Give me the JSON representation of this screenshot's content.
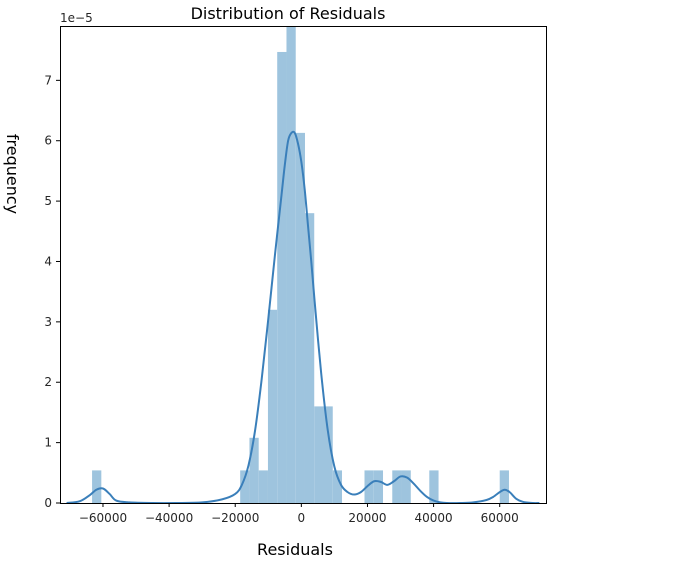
{
  "chart_data": {
    "type": "bar",
    "title": "Distribution of Residuals",
    "xlabel": "Residuals",
    "ylabel": "frequency",
    "y_offset_label": "1e−5",
    "y_scale": 1e-05,
    "xlim": [
      -73000,
      74000
    ],
    "ylim": [
      0,
      7.9
    ],
    "grid": false,
    "legend": "none",
    "x_ticks": [
      {
        "value": -60000,
        "label": "−60000"
      },
      {
        "value": -40000,
        "label": "−40000"
      },
      {
        "value": -20000,
        "label": "−20000"
      },
      {
        "value": 0,
        "label": "0"
      },
      {
        "value": 20000,
        "label": "20000"
      },
      {
        "value": 40000,
        "label": "40000"
      },
      {
        "value": 60000,
        "label": "60000"
      }
    ],
    "y_ticks": [
      {
        "value": 0,
        "label": "0"
      },
      {
        "value": 1,
        "label": "1"
      },
      {
        "value": 2,
        "label": "2"
      },
      {
        "value": 3,
        "label": "3"
      },
      {
        "value": 4,
        "label": "4"
      },
      {
        "value": 5,
        "label": "5"
      },
      {
        "value": 6,
        "label": "6"
      },
      {
        "value": 7,
        "label": "7"
      }
    ],
    "histogram": {
      "bin_width": 2800,
      "bins": [
        {
          "x0": -63300,
          "x1": -60500,
          "value": 0.54
        },
        {
          "x0": -18500,
          "x1": -15700,
          "value": 0.54
        },
        {
          "x0": -15700,
          "x1": -12900,
          "value": 1.08
        },
        {
          "x0": -12900,
          "x1": -10100,
          "value": 0.54
        },
        {
          "x0": -10100,
          "x1": -7300,
          "value": 3.2
        },
        {
          "x0": -7300,
          "x1": -4500,
          "value": 7.47
        },
        {
          "x0": -4500,
          "x1": -1700,
          "value": 9.33
        },
        {
          "x0": -1700,
          "x1": 1100,
          "value": 6.13
        },
        {
          "x0": 1100,
          "x1": 3900,
          "value": 4.8
        },
        {
          "x0": 3900,
          "x1": 6700,
          "value": 1.6
        },
        {
          "x0": 6700,
          "x1": 9500,
          "value": 1.6
        },
        {
          "x0": 9500,
          "x1": 12300,
          "value": 0.54
        },
        {
          "x0": 19100,
          "x1": 21900,
          "value": 0.54
        },
        {
          "x0": 21900,
          "x1": 24700,
          "value": 0.54
        },
        {
          "x0": 27500,
          "x1": 30300,
          "value": 0.54
        },
        {
          "x0": 30300,
          "x1": 33100,
          "value": 0.54
        },
        {
          "x0": 38700,
          "x1": 41500,
          "value": 0.54
        },
        {
          "x0": 60000,
          "x1": 62800,
          "value": 0.54
        }
      ],
      "color": "#9ec4de"
    },
    "kde": {
      "color": "#3a7fba",
      "x": [
        -71000,
        -67000,
        -64000,
        -62000,
        -60000,
        -58000,
        -56000,
        -52000,
        -45000,
        -38000,
        -30000,
        -24000,
        -20000,
        -18000,
        -16000,
        -14000,
        -12000,
        -10000,
        -8000,
        -6000,
        -5000,
        -4000,
        -3000,
        -2000,
        -1000,
        0,
        1000,
        2000,
        3000,
        4000,
        6000,
        8000,
        10000,
        12000,
        14000,
        16000,
        18000,
        20000,
        22000,
        24000,
        26000,
        28000,
        30000,
        32000,
        34000,
        36000,
        38000,
        40000,
        42000,
        44000,
        48000,
        52000,
        56000,
        58000,
        60000,
        61500,
        63000,
        65000,
        67000,
        70000,
        72000
      ],
      "y": [
        0.0,
        0.03,
        0.13,
        0.22,
        0.24,
        0.15,
        0.04,
        0.01,
        0.0,
        0.0,
        0.01,
        0.06,
        0.15,
        0.3,
        0.62,
        1.2,
        2.05,
        3.05,
        4.1,
        5.1,
        5.6,
        6.0,
        6.13,
        6.13,
        5.95,
        5.65,
        5.2,
        4.6,
        4.0,
        3.35,
        2.15,
        1.2,
        0.6,
        0.3,
        0.18,
        0.14,
        0.18,
        0.28,
        0.36,
        0.35,
        0.3,
        0.36,
        0.44,
        0.42,
        0.32,
        0.2,
        0.1,
        0.04,
        0.01,
        0.0,
        0.0,
        0.01,
        0.05,
        0.1,
        0.18,
        0.22,
        0.18,
        0.07,
        0.02,
        0.0,
        0.0
      ]
    }
  }
}
